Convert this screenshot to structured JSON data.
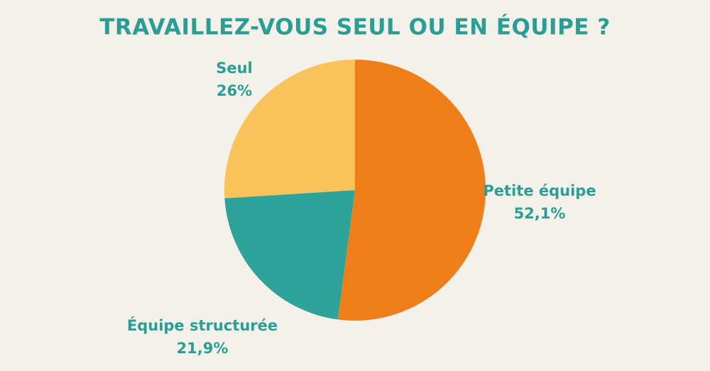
{
  "chart_data": {
    "type": "pie",
    "title": "TRAVAILLEZ-VOUS SEUL OU EN ÉQUIPE ?",
    "categories": [
      "Petite équipe",
      "Équipe structurée",
      "Seul"
    ],
    "values": [
      52.1,
      21.9,
      26
    ],
    "value_labels": [
      "52,1%",
      "21,9%",
      "26%"
    ],
    "colors": [
      "#ee7e19",
      "#2ea39a",
      "#f8c35a"
    ]
  }
}
